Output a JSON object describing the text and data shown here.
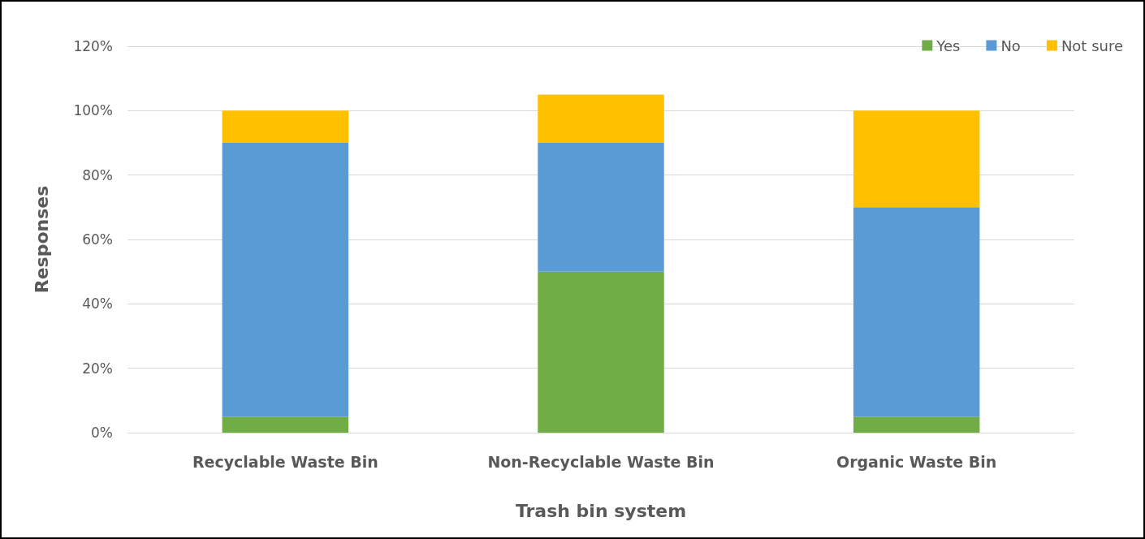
{
  "chart_data": {
    "type": "bar",
    "stacked": true,
    "xlabel": "Trash bin system",
    "ylabel": "Responses",
    "categories": [
      "Recyclable Waste Bin",
      "Non-Recyclable Waste Bin",
      "Organic Waste Bin"
    ],
    "series": [
      {
        "name": "Yes",
        "color": "#70ad47",
        "values": [
          5,
          50,
          5
        ]
      },
      {
        "name": "No",
        "color": "#5b9bd5",
        "values": [
          85,
          40,
          65
        ]
      },
      {
        "name": "Not sure",
        "color": "#ffc000",
        "values": [
          10,
          15,
          30
        ]
      }
    ],
    "ylim": [
      0,
      120
    ],
    "yticks": [
      {
        "value": 0,
        "label": "0%"
      },
      {
        "value": 20,
        "label": "20%"
      },
      {
        "value": 40,
        "label": "40%"
      },
      {
        "value": 60,
        "label": "60%"
      },
      {
        "value": 80,
        "label": "80%"
      },
      {
        "value": 100,
        "label": "100%"
      },
      {
        "value": 120,
        "label": "120%"
      }
    ],
    "grid": "y",
    "legend": "top right"
  }
}
